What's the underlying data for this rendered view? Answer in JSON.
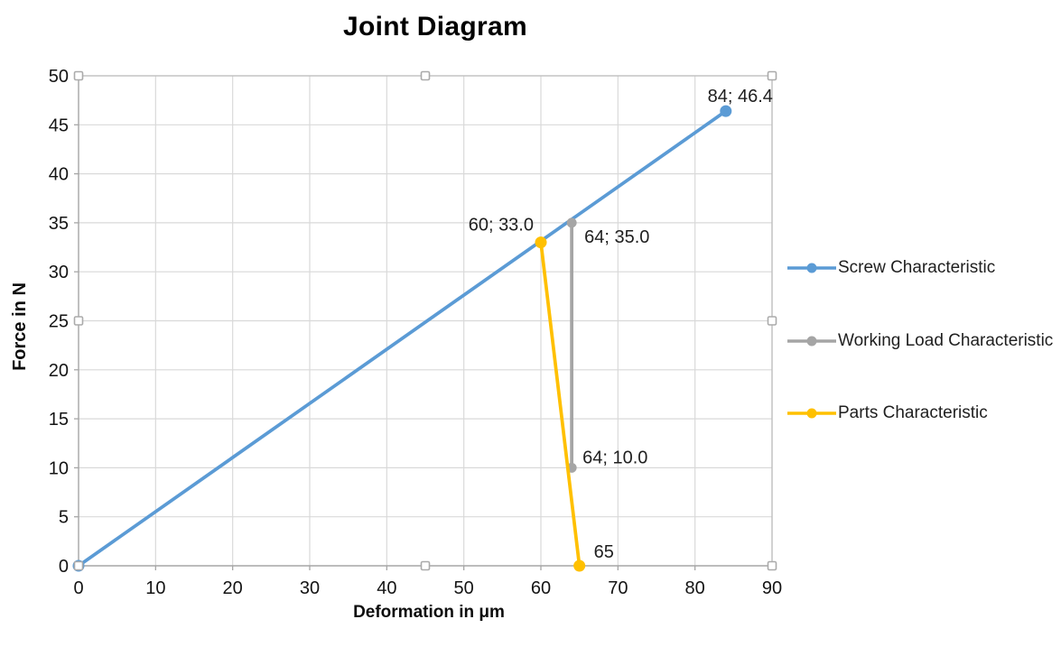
{
  "chart_data": {
    "type": "line",
    "title": "Joint Diagram",
    "xlabel": "Deformation in μm",
    "ylabel": "Force in N",
    "xlim": [
      0,
      90
    ],
    "ylim": [
      0,
      50
    ],
    "x_ticks": [
      0,
      10,
      20,
      30,
      40,
      50,
      60,
      70,
      80,
      90
    ],
    "y_ticks": [
      0,
      5,
      10,
      15,
      20,
      25,
      30,
      35,
      40,
      45,
      50
    ],
    "grid": true,
    "legend_position": "right",
    "plot_area_selected": true,
    "series": [
      {
        "name": "Screw Characteristic",
        "color": "#5B9BD5",
        "marker": "circle",
        "marker_size": 6.5,
        "points": [
          [
            0,
            0
          ],
          [
            84,
            46.4
          ]
        ],
        "labels": [
          {
            "point": 1,
            "text": "84; 46.4",
            "anchor": "middle",
            "dx": 16,
            "dy": -10
          }
        ]
      },
      {
        "name": "Working Load Characteristic",
        "color": "#A5A5A5",
        "marker": "circle",
        "marker_size": 5.5,
        "points": [
          [
            64,
            35.0
          ],
          [
            64,
            10.0
          ]
        ],
        "labels": [
          {
            "point": 0,
            "text": "64; 35.0",
            "anchor": "start",
            "dx": 14,
            "dy": 22
          },
          {
            "point": 1,
            "text": "64; 10.0",
            "anchor": "start",
            "dx": 12,
            "dy": -5
          }
        ]
      },
      {
        "name": "Parts Characteristic",
        "color": "#FFC000",
        "marker": "circle",
        "marker_size": 6.5,
        "points": [
          [
            60,
            33.0
          ],
          [
            65,
            0
          ]
        ],
        "labels": [
          {
            "point": 0,
            "text": "60; 33.0",
            "anchor": "end",
            "dx": -8,
            "dy": -13
          },
          {
            "point": 1,
            "text": "65",
            "anchor": "start",
            "dx": 16,
            "dy": -9
          }
        ]
      }
    ],
    "colors": {
      "grid": "#D9D9D9",
      "axis": "#A6A6A6",
      "border": "#BDBDBD",
      "tick_text": "#141414",
      "label_text": "#1F1F1F",
      "handle_fill": "#FFFFFF",
      "handle_border": "#ABABAB"
    }
  }
}
